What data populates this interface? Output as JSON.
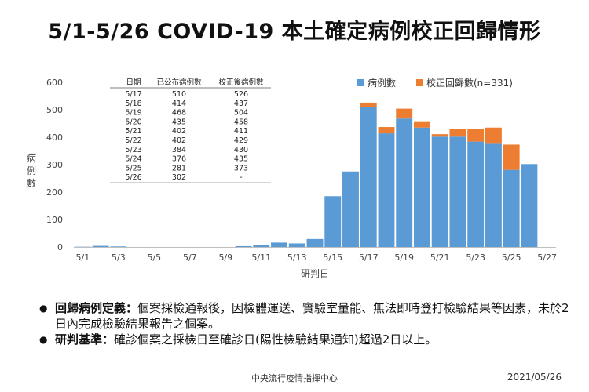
{
  "title": "5/1-5/26 COVID-19 本土確定病例校正回歸情形",
  "chart_data": {
    "type": "bar",
    "stacked": true,
    "ylabel": "病例數",
    "xlabel": "研判日",
    "ylim": [
      0,
      600
    ],
    "yticks": [
      0,
      100,
      200,
      300,
      400,
      500,
      600
    ],
    "grid": false,
    "legend_position": "top-right",
    "categories": [
      "5/1",
      "5/2",
      "5/3",
      "5/4",
      "5/5",
      "5/6",
      "5/7",
      "5/8",
      "5/9",
      "5/10",
      "5/11",
      "5/12",
      "5/13",
      "5/14",
      "5/15",
      "5/16",
      "5/17",
      "5/18",
      "5/19",
      "5/20",
      "5/21",
      "5/22",
      "5/23",
      "5/24",
      "5/25",
      "5/26",
      "5/27"
    ],
    "xtick_labels": [
      "5/1",
      "5/3",
      "5/5",
      "5/7",
      "5/9",
      "5/11",
      "5/13",
      "5/15",
      "5/17",
      "5/19",
      "5/21",
      "5/23",
      "5/25",
      "5/27"
    ],
    "series": [
      {
        "name": "病例數",
        "color": "#5B9BD5",
        "values": [
          1,
          4,
          2,
          0,
          0,
          0,
          0,
          0,
          0,
          3,
          7,
          16,
          13,
          29,
          185,
          275,
          510,
          414,
          468,
          435,
          402,
          402,
          384,
          376,
          281,
          302,
          0
        ]
      },
      {
        "name": "校正回歸數(n=331)",
        "color": "#ED7D31",
        "values": [
          0,
          0,
          0,
          0,
          0,
          0,
          0,
          0,
          0,
          0,
          0,
          0,
          0,
          0,
          0,
          0,
          16,
          23,
          36,
          23,
          9,
          27,
          46,
          59,
          92,
          0,
          0
        ]
      }
    ],
    "table": {
      "headers": [
        "日期",
        "已公布病例數",
        "校正後病例數"
      ],
      "rows": [
        [
          "5/17",
          "510",
          "526"
        ],
        [
          "5/18",
          "414",
          "437"
        ],
        [
          "5/19",
          "468",
          "504"
        ],
        [
          "5/20",
          "435",
          "458"
        ],
        [
          "5/21",
          "402",
          "411"
        ],
        [
          "5/22",
          "402",
          "429"
        ],
        [
          "5/23",
          "384",
          "430"
        ],
        [
          "5/24",
          "376",
          "435"
        ],
        [
          "5/25",
          "281",
          "373"
        ],
        [
          "5/26",
          "302",
          "-"
        ]
      ]
    }
  },
  "notes": [
    {
      "term": "回歸病例定義：",
      "text": "個案採檢通報後，因檢體運送、實驗室量能、無法即時登打檢驗結果等因素，未於2日內完成檢驗結果報告之個案。"
    },
    {
      "term": "研判基準：",
      "text": "確診個案之採檢日至確診日(陽性檢驗結果通知)超過2日以上。"
    }
  ],
  "footer": {
    "org": "中央流行疫情指揮中心",
    "date": "2021/05/26"
  }
}
